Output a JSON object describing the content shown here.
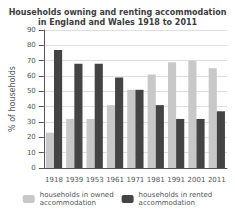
{
  "chart_data": {
    "type": "bar",
    "title": "Households owning and renting accommodation\nin England and Wales 1918 to 2011",
    "categories": [
      "1918",
      "1939",
      "1953",
      "1961",
      "1971",
      "1981",
      "1991",
      "2001",
      "2011"
    ],
    "series": [
      {
        "name": "households in owned\naccommodation",
        "color": "#c8c8c8",
        "values": [
          23,
          32,
          32,
          41,
          51,
          61,
          69,
          70,
          65
        ]
      },
      {
        "name": "households in rented\naccommodation",
        "color": "#444444",
        "values": [
          77,
          68,
          68,
          59,
          51,
          41,
          32,
          32,
          37
        ]
      }
    ],
    "ylabel": "% of households",
    "ylim": [
      0,
      90
    ],
    "yticks": [
      0,
      10,
      20,
      30,
      40,
      50,
      60,
      70,
      80,
      90
    ],
    "grid": true,
    "legend": "bottom"
  }
}
